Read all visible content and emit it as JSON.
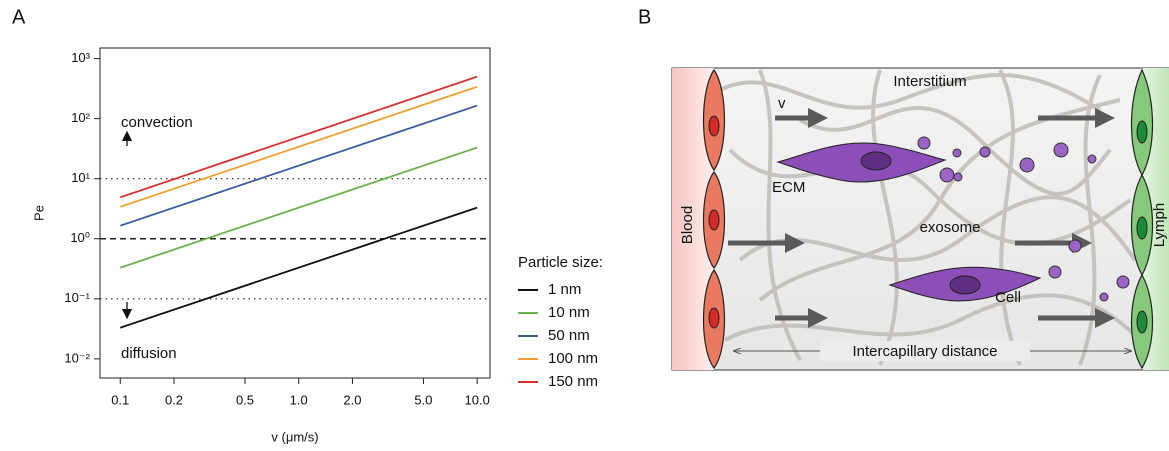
{
  "panel_a": {
    "label": "A"
  },
  "chart_data": {
    "type": "line",
    "xlabel": "v (μm/s)",
    "ylabel": "Pe",
    "xscale": "log",
    "yscale": "log",
    "xlim": [
      0.077,
      11.8
    ],
    "ylim": [
      0.0048,
      1500
    ],
    "xticks": [
      0.1,
      0.2,
      0.5,
      {
        "value": 1,
        "label": "1.0"
      },
      {
        "value": 2,
        "label": "2.0"
      },
      {
        "value": 5,
        "label": "5.0"
      },
      {
        "value": 10,
        "label": "10.0"
      }
    ],
    "yticks": [
      {
        "value": 0.01,
        "label": "10⁻²"
      },
      {
        "value": 0.1,
        "label": "10⁻¹"
      },
      {
        "value": 1,
        "label": "10⁰"
      },
      {
        "value": 10,
        "label": "10¹"
      },
      {
        "value": 100,
        "label": "10²"
      },
      {
        "value": 1000,
        "label": "10³"
      }
    ],
    "x": [
      0.1,
      10
    ],
    "series": [
      {
        "name": "1 nm",
        "color": "#111111",
        "values": [
          0.033,
          3.3
        ]
      },
      {
        "name": "10 nm",
        "color": "#6ab04c",
        "values": [
          0.33,
          33
        ]
      },
      {
        "name": "50 nm",
        "color": "#3b5ba5",
        "values": [
          1.65,
          165
        ]
      },
      {
        "name": "100 nm",
        "color": "#f0a030",
        "values": [
          3.4,
          340
        ]
      },
      {
        "name": "150 nm",
        "color": "#d93030",
        "values": [
          4.9,
          500
        ]
      }
    ],
    "reference_lines": [
      {
        "value": 10,
        "style": "dotted"
      },
      {
        "value": 1,
        "style": "dashed"
      },
      {
        "value": 0.1,
        "style": "dotted"
      }
    ],
    "annotations": [
      "convection",
      "diffusion"
    ],
    "legend_title": "Particle size:",
    "legend": "right"
  },
  "panel_b": {
    "label": "B",
    "labels": {
      "interstitium": "Interstitium",
      "v": "v",
      "ecm": "ECM",
      "exosome": "exosome",
      "cell": "Cell",
      "blood": "Blood",
      "lymph": "Lymph",
      "distance": "Intercapillary distance"
    }
  }
}
